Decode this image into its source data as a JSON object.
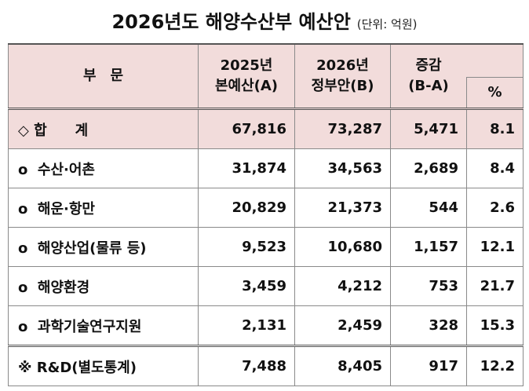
{
  "title": "2026년도 해양수산부 예산안",
  "unit": "(단위: 억원)",
  "table": {
    "header": {
      "category": "부　문",
      "col_2025": [
        "2025년",
        "본예산(A)"
      ],
      "col_2026": [
        "2026년",
        "정부안(B)"
      ],
      "change": [
        "증감",
        "(B-A)"
      ],
      "percent": "%"
    },
    "rows": [
      [
        "◇ 합　　계",
        "67,816",
        "73,287",
        "5,471",
        "8.1"
      ],
      [
        "o  수산·어촌",
        "31,874",
        "34,563",
        "2,689",
        "8.4"
      ],
      [
        "o  해운·항만",
        "20,829",
        "21,373",
        "544",
        "2.6"
      ],
      [
        "o  해양산업(물류 등)",
        "9,523",
        "10,680",
        "1,157",
        "12.1"
      ],
      [
        "o  해양환경",
        "3,459",
        "4,212",
        "753",
        "21.7"
      ],
      [
        "o  과학기술연구지원",
        "2,131",
        "2,459",
        "328",
        "15.3"
      ],
      [
        "※ R&D(별도통계)",
        "7,488",
        "8,405",
        "917",
        "12.2"
      ]
    ]
  }
}
